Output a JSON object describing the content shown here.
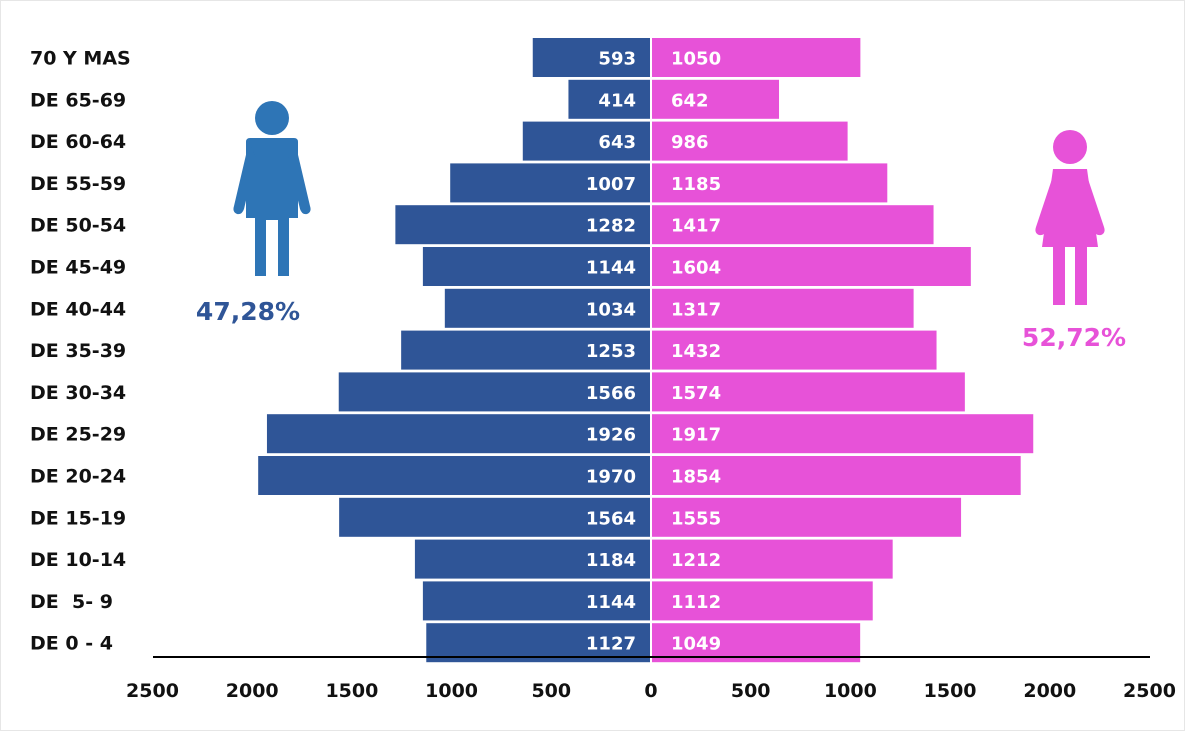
{
  "chart_data": {
    "type": "bar",
    "orientation": "horizontal",
    "layout": "population-pyramid",
    "categories": [
      "70 Y MAS",
      "DE 65-69",
      "DE 60-64",
      "DE 55-59",
      "DE 50-54",
      "DE 45-49",
      "DE 40-44",
      "DE 35-39",
      "DE 30-34",
      "DE 25-29",
      "DE 20-24",
      "DE 15-19",
      "DE 10-14",
      "DE  5- 9",
      "DE 0 - 4"
    ],
    "series": [
      {
        "side": "left",
        "color": "#2f5597",
        "values": [
          593,
          414,
          643,
          1007,
          1282,
          1144,
          1034,
          1253,
          1566,
          1926,
          1970,
          1564,
          1184,
          1144,
          1127
        ]
      },
      {
        "side": "right",
        "color": "#e752d8",
        "values": [
          1050,
          642,
          986,
          1185,
          1417,
          1604,
          1317,
          1432,
          1574,
          1917,
          1854,
          1555,
          1212,
          1112,
          1049
        ]
      }
    ],
    "xlim": [
      -2500,
      2500
    ],
    "x_ticks": [
      "2500",
      "2000",
      "1500",
      "1000",
      "500",
      "0",
      "500",
      "1000",
      "1500",
      "2000",
      "2500"
    ],
    "grid": false,
    "legend": "none",
    "annotations": {
      "male_percent": "47,28%",
      "female_percent": "52,72%"
    }
  },
  "icons": {
    "male": {
      "name": "male-person-icon",
      "color": "#2e75b6"
    },
    "female": {
      "name": "female-person-icon",
      "color": "#e752d8"
    }
  },
  "colors": {
    "male_text": "#2f5597",
    "female_text": "#e752d8",
    "axis": "#000000"
  }
}
